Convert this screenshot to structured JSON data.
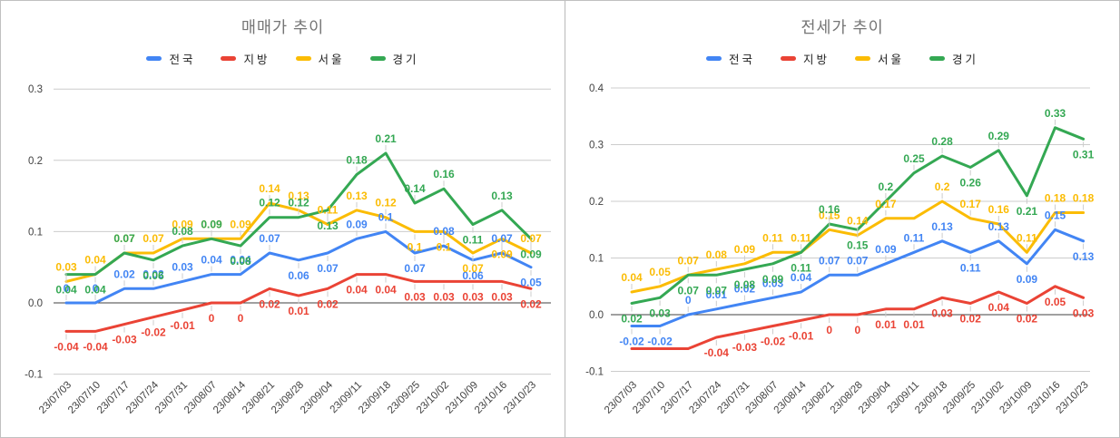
{
  "frame": {
    "border_color": "#c0c0c0",
    "background": "#ffffff",
    "divider_color": "#b9b9b9"
  },
  "palette": {
    "nationwide": "#4285F4",
    "regional": "#EA4335",
    "seoul": "#FBBC04",
    "gyeonggi": "#34A853"
  },
  "chart_data": [
    {
      "type": "line",
      "title": "매매가 추이",
      "legend_position": "top",
      "grid": true,
      "ylim": [
        -0.1,
        0.3
      ],
      "yticks": [
        0.3,
        0.2,
        0.1,
        0.0,
        -0.1
      ],
      "ytick_labels": [
        "0.3",
        "0.2",
        "0.1",
        "0.0",
        "-0.1"
      ],
      "categories": [
        "23/07/03",
        "23/07/10",
        "23/07/17",
        "23/07/24",
        "23/07/31",
        "23/08/07",
        "23/08/14",
        "23/08/21",
        "23/08/28",
        "23/09/04",
        "23/09/11",
        "23/09/18",
        "23/09/25",
        "23/10/02",
        "23/10/09",
        "23/10/16",
        "23/10/23"
      ],
      "series": [
        {
          "name": "전국",
          "key": "nationwide",
          "color": "#4285F4",
          "values": [
            0,
            0,
            0.02,
            0.02,
            0.03,
            0.04,
            0.04,
            0.07,
            0.06,
            0.07,
            0.09,
            0.1,
            0.07,
            0.08,
            0.06,
            0.07,
            0.05
          ],
          "labels": [
            "0",
            "0",
            "0.02",
            "0.02",
            "0.03",
            "0.04",
            "0.04",
            "0.07",
            "0.06",
            "0.07",
            "0.09",
            "0.1",
            "0.07",
            "0.08",
            "0.06",
            "0.07",
            "0.05"
          ],
          "label_pos": [
            "a",
            "a",
            "a",
            "a",
            "a",
            "a",
            "a",
            "a",
            "b",
            "b",
            "a",
            "a",
            "b",
            "a",
            "b",
            "a",
            "b"
          ]
        },
        {
          "name": "지방",
          "key": "regional",
          "color": "#EA4335",
          "values": [
            -0.04,
            -0.04,
            -0.03,
            -0.02,
            -0.01,
            0,
            0,
            0.02,
            0.01,
            0.02,
            0.04,
            0.04,
            0.03,
            0.03,
            0.03,
            0.03,
            0.02
          ],
          "labels": [
            "-0.04",
            "-0.04",
            "-0.03",
            "-0.02",
            "-0.01",
            "0",
            "0",
            "0.02",
            "0.01",
            "0.02",
            "0.04",
            "0.04",
            "0.03",
            "0.03",
            "0.03",
            "0.03",
            "0.02"
          ],
          "label_pos": [
            "b",
            "b",
            "b",
            "b",
            "b",
            "b",
            "b",
            "b",
            "b",
            "b",
            "b",
            "b",
            "b",
            "b",
            "b",
            "b",
            "b"
          ]
        },
        {
          "name": "서울",
          "key": "seoul",
          "color": "#FBBC04",
          "values": [
            0.03,
            0.04,
            0.07,
            0.07,
            0.09,
            0.09,
            0.09,
            0.14,
            0.13,
            0.11,
            0.13,
            0.12,
            0.1,
            0.1,
            0.07,
            0.09,
            0.07
          ],
          "labels": [
            "0.03",
            "0.04",
            "0.07",
            "0.07",
            "0.09",
            "0.09",
            "0.09",
            "0.14",
            "0.13",
            "0.11",
            "0.13",
            "0.12",
            "0.1",
            "0.1",
            "0.07",
            "0.09",
            "0.07"
          ],
          "label_pos": [
            "a",
            "a",
            "a",
            "a",
            "a",
            "a",
            "a",
            "a",
            "a",
            "a",
            "a",
            "a",
            "b",
            "b",
            "b",
            "b",
            "a"
          ]
        },
        {
          "name": "경기",
          "key": "gyeonggi",
          "color": "#34A853",
          "values": [
            0.04,
            0.04,
            0.07,
            0.06,
            0.08,
            0.09,
            0.08,
            0.12,
            0.12,
            0.13,
            0.18,
            0.21,
            0.14,
            0.16,
            0.11,
            0.13,
            0.09
          ],
          "labels": [
            "0.04",
            "0.04",
            "0.07",
            "0.06",
            "0.08",
            "0.09",
            "0.08",
            "0.12",
            "0.12",
            "0.13",
            "0.18",
            "0.21",
            "0.14",
            "0.16",
            "0.11",
            "0.13",
            "0.09"
          ],
          "label_pos": [
            "b",
            "b",
            "a",
            "b",
            "a",
            "a",
            "b",
            "a",
            "a",
            "b",
            "a",
            "a",
            "a",
            "a",
            "b",
            "a",
            "b"
          ]
        }
      ]
    },
    {
      "type": "line",
      "title": "전세가 추이",
      "legend_position": "top",
      "grid": true,
      "ylim": [
        -0.1,
        0.4
      ],
      "yticks": [
        0.4,
        0.3,
        0.2,
        0.1,
        0.0,
        -0.1
      ],
      "ytick_labels": [
        "0.4",
        "0.3",
        "0.2",
        "0.1",
        "0.0",
        "-0.1"
      ],
      "categories": [
        "23/07/03",
        "23/07/10",
        "23/07/17",
        "23/07/24",
        "23/07/31",
        "23/08/07",
        "23/08/14",
        "23/08/21",
        "23/08/28",
        "23/09/04",
        "23/09/11",
        "23/09/18",
        "23/09/25",
        "23/10/02",
        "23/10/09",
        "23/10/16",
        "23/10/23"
      ],
      "series": [
        {
          "name": "전국",
          "key": "nationwide",
          "color": "#4285F4",
          "values": [
            -0.02,
            -0.02,
            0,
            0.01,
            0.02,
            0.03,
            0.04,
            0.07,
            0.07,
            0.09,
            0.11,
            0.13,
            0.11,
            0.13,
            0.09,
            0.15,
            0.13
          ],
          "labels": [
            "-0.02",
            "-0.02",
            "0",
            "0.01",
            "0.02",
            "0.03",
            "0.04",
            "0.07",
            "0.07",
            "0.09",
            "0.11",
            "0.13",
            "0.11",
            "0.13",
            "0.09",
            "0.15",
            "0.13"
          ],
          "label_pos": [
            "b",
            "b",
            "a",
            "a",
            "a",
            "a",
            "a",
            "a",
            "a",
            "a",
            "a",
            "a",
            "b",
            "a",
            "b",
            "a",
            "b"
          ]
        },
        {
          "name": "지방",
          "key": "regional",
          "color": "#EA4335",
          "values": [
            -0.06,
            -0.06,
            -0.06,
            -0.04,
            -0.03,
            -0.02,
            -0.01,
            0,
            0,
            0.01,
            0.01,
            0.03,
            0.02,
            0.04,
            0.02,
            0.05,
            0.03
          ],
          "labels": [
            null,
            null,
            null,
            "-0.04",
            "-0.03",
            "-0.02",
            "-0.01",
            "0",
            "0",
            "0.01",
            "0.01",
            "0.03",
            "0.02",
            "0.04",
            "0.02",
            "0.05",
            "0.03"
          ],
          "label_pos": [
            "b",
            "b",
            "b",
            "b",
            "b",
            "b",
            "b",
            "b",
            "b",
            "b",
            "b",
            "b",
            "b",
            "b",
            "b",
            "b",
            "b"
          ]
        },
        {
          "name": "서울",
          "key": "seoul",
          "color": "#FBBC04",
          "values": [
            0.04,
            0.05,
            0.07,
            0.08,
            0.09,
            0.11,
            0.11,
            0.15,
            0.14,
            0.17,
            0.17,
            0.2,
            0.17,
            0.16,
            0.11,
            0.18,
            0.18
          ],
          "labels": [
            "0.04",
            "0.05",
            "0.07",
            "0.08",
            "0.09",
            "0.11",
            "0.11",
            "0.15",
            "0.14",
            "0.17",
            null,
            "0.2",
            "0.17",
            "0.16",
            "0.11",
            "0.18",
            "0.18"
          ],
          "label_pos": [
            "a",
            "a",
            "a",
            "a",
            "a",
            "a",
            "a",
            "a",
            "a",
            "a",
            "a",
            "a",
            "a",
            "a",
            "a",
            "a",
            "a"
          ]
        },
        {
          "name": "경기",
          "key": "gyeonggi",
          "color": "#34A853",
          "values": [
            0.02,
            0.03,
            0.07,
            0.07,
            0.08,
            0.09,
            0.11,
            0.16,
            0.15,
            0.2,
            0.25,
            0.28,
            0.26,
            0.29,
            0.21,
            0.33,
            0.31
          ],
          "labels": [
            "0.02",
            "0.03",
            "0.07",
            "0.07",
            "0.08",
            "0.09",
            "0.11",
            "0.16",
            "0.15",
            "0.2",
            "0.25",
            "0.28",
            "0.26",
            "0.29",
            "0.21",
            "0.33",
            "0.31"
          ],
          "label_pos": [
            "b",
            "b",
            "b",
            "b",
            "b",
            "b",
            "b",
            "a",
            "b",
            "a",
            "a",
            "a",
            "b",
            "a",
            "b",
            "a",
            "b"
          ]
        }
      ]
    }
  ]
}
